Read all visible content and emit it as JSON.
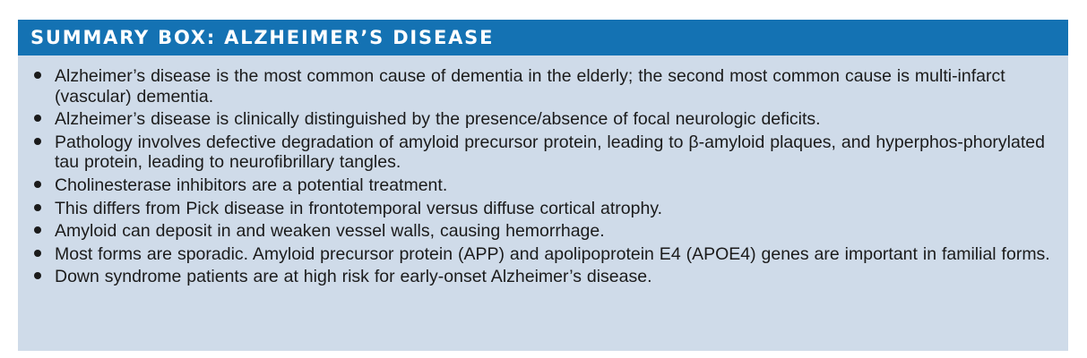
{
  "summary_box": {
    "title": "SUMMARY BOX: ALZHEIMER’S DISEASE",
    "bullets": [
      "Alzheimer’s disease is the most common cause of dementia in the elderly; the second most common cause is multi-infarct (vascular) dementia.",
      "Alzheimer’s disease is clinically distinguished by the presence/absence of focal neurologic deficits.",
      "Pathology involves defective degradation of amyloid precursor protein, leading to β-amyloid plaques, and hyperphos-phorylated tau protein, leading to neurofibrillary tangles.",
      "Cholinesterase inhibitors are a potential treatment.",
      "This differs from Pick disease in frontotemporal versus diffuse cortical atrophy.",
      "Amyloid can deposit in and weaken vessel walls, causing hemorrhage.",
      "Most forms are sporadic. Amyloid precursor protein (APP) and apolipoprotein E4 (APOE4) genes are important in familial forms.",
      "Down syndrome patients are at high risk for early-onset Alzheimer’s disease."
    ]
  }
}
